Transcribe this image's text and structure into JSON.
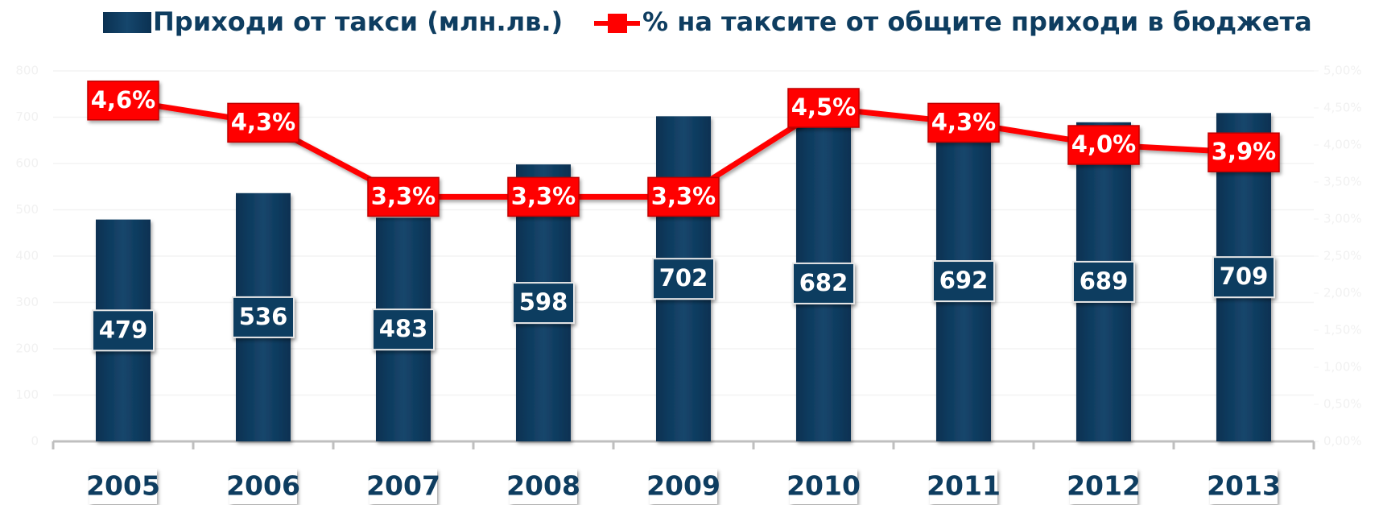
{
  "chart_data": {
    "type": "bar_line",
    "categories": [
      "2005",
      "2006",
      "2007",
      "2008",
      "2009",
      "2010",
      "2011",
      "2012",
      "2013"
    ],
    "series": [
      {
        "name": "Приходи от такси (млн.лв.)",
        "color": "#0e3d60",
        "values": [
          479,
          536,
          483,
          598,
          702,
          682,
          692,
          689,
          709
        ]
      },
      {
        "name": "% на таксите от общите приходи в бюджета",
        "color": "#ff0000",
        "axis": "y2",
        "values": [
          4.6,
          4.3,
          3.3,
          3.3,
          3.3,
          4.5,
          4.3,
          4.0,
          3.9
        ],
        "value_labels": [
          "4,6%",
          "4,3%",
          "3,3%",
          "3,3%",
          "3,3%",
          "4,5%",
          "4,3%",
          "4,0%",
          "3,9%"
        ]
      }
    ],
    "ylim": [
      0,
      800
    ],
    "yticks": [
      0,
      100,
      200,
      300,
      400,
      500,
      600,
      700,
      800
    ],
    "y2lim": [
      0,
      5
    ],
    "y2ticks": [
      {
        "value": 0,
        "label": "0,00%"
      },
      {
        "value": 0.5,
        "label": "0,50%"
      },
      {
        "value": 1,
        "label": "1,00%"
      },
      {
        "value": 1.5,
        "label": "1,50%"
      },
      {
        "value": 2,
        "label": "2,00%"
      },
      {
        "value": 2.5,
        "label": "2,50%"
      },
      {
        "value": 3,
        "label": "3,00%"
      },
      {
        "value": 3.5,
        "label": "3,50%"
      },
      {
        "value": 4,
        "label": "4,00%"
      },
      {
        "value": 4.5,
        "label": "4,50%"
      },
      {
        "value": 5,
        "label": "5,00%"
      }
    ],
    "grid": true
  }
}
